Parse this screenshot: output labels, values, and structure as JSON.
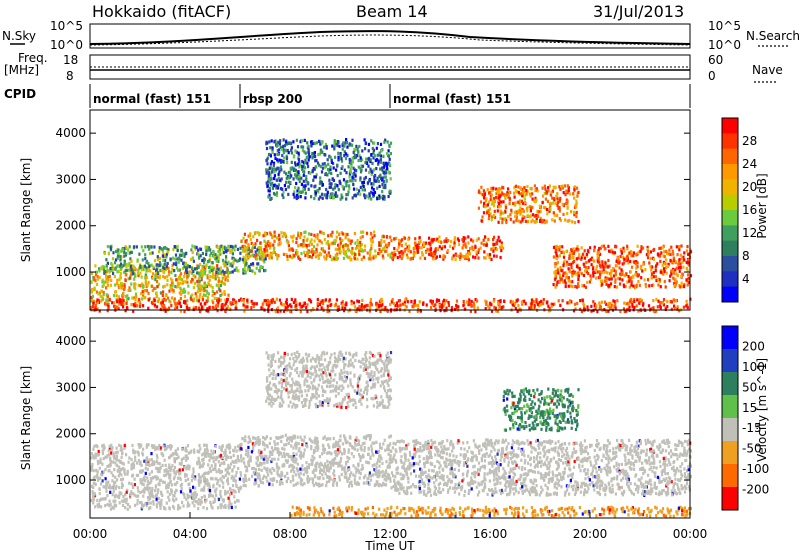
{
  "header": {
    "title": "Hokkaido (fitACF)",
    "beam": "Beam 14",
    "date": "31/Jul/2013"
  },
  "status_panels": {
    "nsky_label": "N.Sky",
    "nsearch_label": "N.Search",
    "noise_ticks": [
      "10^5",
      "10^0"
    ],
    "freq_label": "Freq.",
    "freq_unit": "[MHz]",
    "freq_ticks": [
      "18",
      "8"
    ],
    "nave_label": "Nave",
    "nave_ticks": [
      "60",
      "0"
    ],
    "cpid_label": "CPID",
    "cpid_segments": [
      {
        "label": "normal (fast) 151",
        "start_hour": 0,
        "end_hour": 6
      },
      {
        "label": "rbsp 200",
        "start_hour": 6,
        "end_hour": 12
      },
      {
        "label": "normal (fast) 151",
        "start_hour": 12,
        "end_hour": 24
      }
    ]
  },
  "chart_data": [
    {
      "type": "heatmap",
      "panel": "power",
      "xlabel": "",
      "ylabel": "Slant Range [km]",
      "xlim": [
        0,
        24
      ],
      "ylim": [
        180,
        4500
      ],
      "y_ticks": [
        "1000",
        "2000",
        "3000",
        "4000"
      ],
      "colorbar": {
        "label": "Power [dB]",
        "ticks": [
          "28",
          "24",
          "20",
          "16",
          "12",
          "8",
          "4"
        ],
        "colors": [
          "#ff0000",
          "#ff3300",
          "#ff6600",
          "#ff9900",
          "#f0b300",
          "#b8cc00",
          "#6ccb3c",
          "#3f9f5f",
          "#2e7f5e",
          "#2a4f9e",
          "#1f2fbf",
          "#0000ff"
        ]
      },
      "scatter_bands": [
        {
          "h0": 0.0,
          "h1": 5.5,
          "r0": 400,
          "r1": 1200,
          "value": 20
        },
        {
          "h0": 0.5,
          "h1": 7.0,
          "r0": 1000,
          "r1": 1600,
          "value": 12
        },
        {
          "h0": 6.0,
          "h1": 12.0,
          "r0": 1300,
          "r1": 1900,
          "value": 22
        },
        {
          "h0": 7.0,
          "h1": 12.0,
          "r0": 2600,
          "r1": 3900,
          "value": 8
        },
        {
          "h0": 12.0,
          "h1": 16.5,
          "r0": 1300,
          "r1": 1800,
          "value": 26
        },
        {
          "h0": 15.5,
          "h1": 19.5,
          "r0": 2100,
          "r1": 2900,
          "value": 24
        },
        {
          "h0": 18.5,
          "h1": 24.0,
          "r0": 700,
          "r1": 1600,
          "value": 26
        },
        {
          "h0": 0.0,
          "h1": 24.0,
          "r0": 180,
          "r1": 450,
          "value": 28
        }
      ]
    },
    {
      "type": "heatmap",
      "panel": "velocity",
      "xlabel": "Time UT",
      "ylabel": "Slant Range [km]",
      "xlim": [
        0,
        24
      ],
      "ylim": [
        180,
        4500
      ],
      "x_ticks": [
        "00:00",
        "04:00",
        "08:00",
        "12:00",
        "16:00",
        "20:00",
        "00:00"
      ],
      "y_ticks": [
        "1000",
        "2000",
        "3000",
        "4000"
      ],
      "colorbar": {
        "label": "Velocity [m s^-1]",
        "ticks": [
          "200",
          "100",
          "50",
          "15",
          "-15",
          "-50",
          "-100",
          "-200"
        ],
        "colors": [
          "#0000ff",
          "#1f3fbf",
          "#2e7f5e",
          "#5fc04a",
          "#c0c0b8",
          "#f0a020",
          "#ff6a00",
          "#ff0000"
        ]
      },
      "scatter_bands": [
        {
          "h0": 0.0,
          "h1": 6.0,
          "r0": 400,
          "r1": 1800,
          "value": 0
        },
        {
          "h0": 6.0,
          "h1": 12.0,
          "r0": 900,
          "r1": 2000,
          "value": 0
        },
        {
          "h0": 7.0,
          "h1": 12.0,
          "r0": 2600,
          "r1": 3800,
          "value": 0
        },
        {
          "h0": 12.0,
          "h1": 24.0,
          "r0": 700,
          "r1": 1900,
          "value": 0
        },
        {
          "h0": 16.5,
          "h1": 19.5,
          "r0": 2100,
          "r1": 3000,
          "value": 40
        },
        {
          "h0": 8.0,
          "h1": 24.0,
          "r0": 250,
          "r1": 450,
          "value": -40
        }
      ]
    }
  ]
}
